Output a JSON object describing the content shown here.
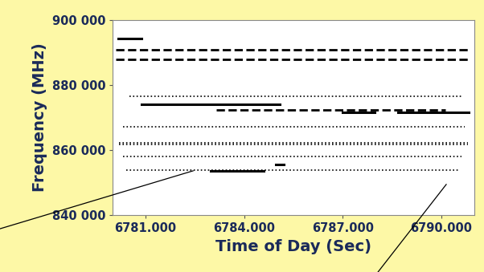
{
  "chart_data": {
    "type": "line",
    "x_label": "Time of Day (Sec)",
    "y_label": "Frequency (MHz)",
    "color": "#000000",
    "xlim": [
      6780,
      6791
    ],
    "ylim": [
      840000,
      900000
    ],
    "xticks": [
      {
        "value": 6781,
        "label": "6781.000"
      },
      {
        "value": 6784,
        "label": "6784.000"
      },
      {
        "value": 6787,
        "label": "6787.000"
      },
      {
        "value": 6790,
        "label": "6790.000"
      }
    ],
    "yticks": [
      {
        "value": 840000,
        "label": "840 000"
      },
      {
        "value": 860000,
        "label": "860 000"
      },
      {
        "value": 880000,
        "label": "880 000"
      },
      {
        "value": 900000,
        "label": "900 000"
      }
    ],
    "grid": false,
    "series": [
      {
        "x": [
          6780.16,
          6780.88
        ],
        "values": [
          894300,
          894300
        ],
        "line_style": "solid"
      },
      {
        "x": [
          6780.1,
          6790.8
        ],
        "values": [
          890900,
          890900
        ],
        "line_style": "dashed"
      },
      {
        "x": [
          6780.1,
          6790.8
        ],
        "values": [
          887900,
          887900
        ],
        "line_style": "dashed"
      },
      {
        "x": [
          6780.5,
          6790.6
        ],
        "values": [
          876600,
          876600
        ],
        "line_style": "dotted"
      },
      {
        "x": [
          6780.88,
          6785.08
        ],
        "values": [
          874100,
          874100
        ],
        "line_style": "solid"
      },
      {
        "x": [
          6783.16,
          6790.12
        ],
        "values": [
          872400,
          872400
        ],
        "line_style": "dashed"
      },
      {
        "x": [
          6787.0,
          6787.96
        ],
        "values": [
          871600,
          871600
        ],
        "line_style": "solid"
      },
      {
        "x": [
          6788.68,
          6790.84
        ],
        "values": [
          871600,
          871600
        ],
        "line_style": "solid"
      },
      {
        "x": [
          6780.3,
          6790.7
        ],
        "values": [
          867200,
          867200
        ],
        "line_style": "dotted"
      },
      {
        "x": [
          6780.2,
          6790.8
        ],
        "values": [
          862200,
          862200
        ],
        "line_style": "dotted"
      },
      {
        "x": [
          6780.2,
          6790.8
        ],
        "values": [
          861700,
          861700
        ],
        "line_style": "dotted"
      },
      {
        "x": [
          6780.3,
          6790.6
        ],
        "values": [
          858000,
          858000
        ],
        "line_style": "dotted"
      },
      {
        "x": [
          6780.4,
          6790.5
        ],
        "values": [
          853800,
          853800
        ],
        "line_style": "dotted"
      },
      {
        "x": [
          6782.97,
          6784.6
        ],
        "values": [
          853600,
          853600
        ],
        "line_style": "solid"
      },
      {
        "x": [
          6784.96,
          6785.2
        ],
        "values": [
          855600,
          855600
        ],
        "line_style": "solid"
      }
    ]
  }
}
